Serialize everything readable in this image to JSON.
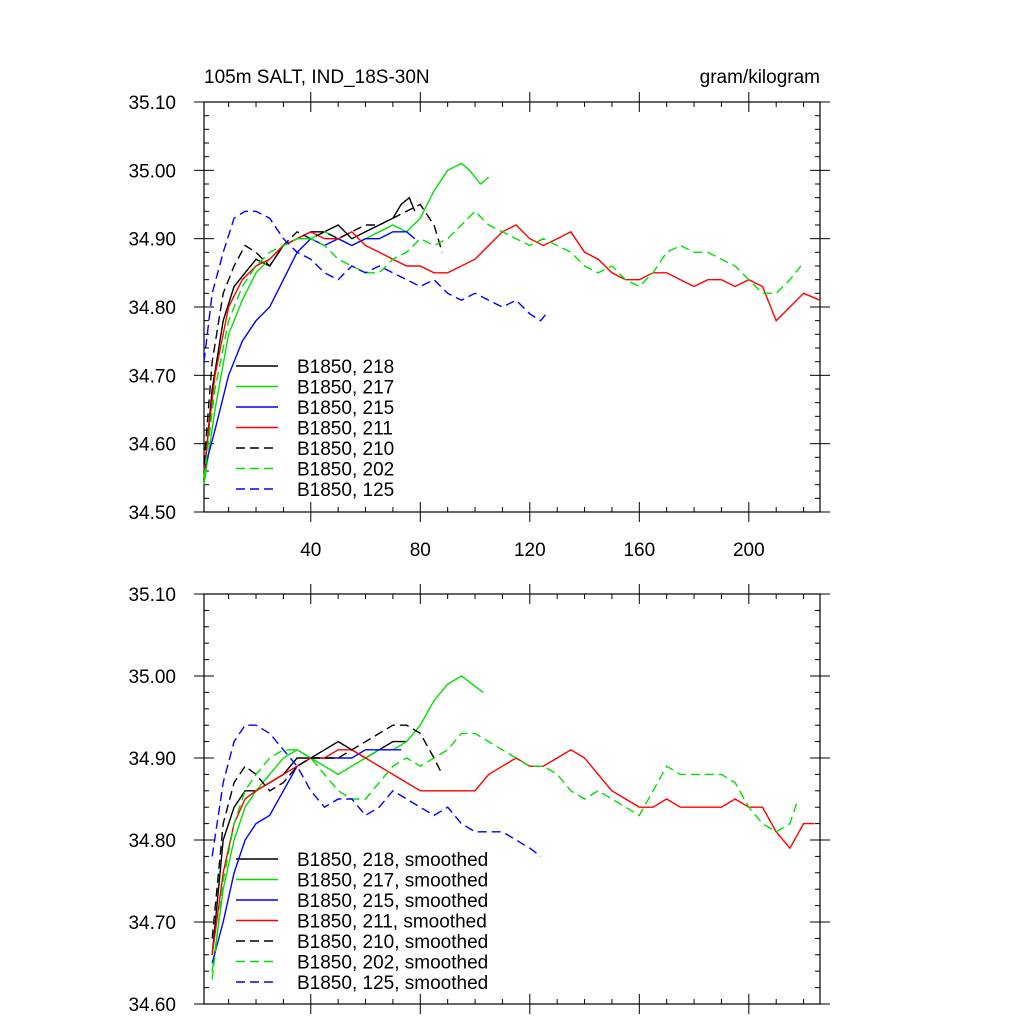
{
  "chart_data": [
    {
      "type": "line",
      "title_left": "105m SALT, IND_18S-30N",
      "title_right": "gram/kilogram",
      "xlim": [
        1,
        226
      ],
      "ylim": [
        34.5,
        35.1
      ],
      "xticks": [
        40,
        80,
        120,
        160,
        200
      ],
      "xtick_labels": [
        "40",
        "80",
        "120",
        "160",
        "200"
      ],
      "yticks": [
        34.5,
        34.6,
        34.7,
        34.8,
        34.9,
        35.0,
        35.1
      ],
      "ytick_labels": [
        "34.50",
        "34.60",
        "34.70",
        "34.80",
        "34.90",
        "35.00",
        "35.10"
      ],
      "series": [
        {
          "name": "B1850, 218",
          "color": "#000000",
          "dash": "solid",
          "x": [
            1,
            4,
            8,
            12,
            16,
            20,
            25,
            30,
            35,
            40,
            45,
            50,
            55,
            60,
            65,
            70,
            73,
            76,
            78
          ],
          "y": [
            34.55,
            34.68,
            34.78,
            34.83,
            34.85,
            34.87,
            34.86,
            34.89,
            34.9,
            34.91,
            34.91,
            34.92,
            34.9,
            34.91,
            34.92,
            34.93,
            34.95,
            34.96,
            34.94
          ]
        },
        {
          "name": "B1850, 217",
          "color": "#00e000",
          "dash": "solid",
          "x": [
            1,
            5,
            10,
            15,
            20,
            25,
            30,
            35,
            40,
            45,
            50,
            55,
            60,
            65,
            70,
            75,
            80,
            85,
            90,
            95,
            98,
            102,
            105
          ],
          "y": [
            34.54,
            34.65,
            34.76,
            34.81,
            34.85,
            34.87,
            34.89,
            34.9,
            34.9,
            34.91,
            34.9,
            34.89,
            34.9,
            34.91,
            34.92,
            34.91,
            34.93,
            34.97,
            35.0,
            35.01,
            35.0,
            34.98,
            34.99
          ]
        },
        {
          "name": "B1850, 215",
          "color": "#0000ff",
          "dash": "solid",
          "x": [
            1,
            5,
            10,
            15,
            20,
            25,
            30,
            35,
            40,
            45,
            50,
            55,
            60,
            65,
            70,
            75,
            78
          ],
          "y": [
            34.56,
            34.62,
            34.7,
            34.75,
            34.78,
            34.8,
            34.84,
            34.88,
            34.9,
            34.89,
            34.9,
            34.89,
            34.9,
            34.9,
            34.91,
            34.91,
            34.9
          ]
        },
        {
          "name": "B1850, 211",
          "color": "#ff0000",
          "dash": "solid",
          "x": [
            1,
            5,
            10,
            15,
            20,
            25,
            30,
            35,
            40,
            45,
            50,
            55,
            60,
            65,
            70,
            75,
            80,
            85,
            90,
            95,
            100,
            105,
            110,
            115,
            120,
            125,
            130,
            135,
            140,
            145,
            150,
            155,
            160,
            165,
            170,
            175,
            180,
            185,
            190,
            195,
            200,
            205,
            210,
            215,
            220,
            226
          ],
          "y": [
            34.56,
            34.7,
            34.8,
            34.84,
            34.86,
            34.87,
            34.89,
            34.9,
            34.91,
            34.9,
            34.9,
            34.91,
            34.89,
            34.88,
            34.87,
            34.86,
            34.86,
            34.85,
            34.85,
            34.86,
            34.87,
            34.89,
            34.91,
            34.92,
            34.9,
            34.89,
            34.9,
            34.91,
            34.88,
            34.87,
            34.85,
            34.84,
            34.84,
            34.85,
            34.85,
            34.84,
            34.83,
            34.84,
            34.84,
            34.83,
            34.84,
            34.83,
            34.78,
            34.8,
            34.82,
            34.81
          ]
        },
        {
          "name": "B1850, 210",
          "color": "#000000",
          "dash": "dashed",
          "x": [
            1,
            4,
            8,
            12,
            16,
            20,
            25,
            30,
            35,
            40,
            45,
            50,
            55,
            60,
            65,
            70,
            75,
            80,
            85,
            88
          ],
          "y": [
            34.57,
            34.72,
            34.82,
            34.86,
            34.89,
            34.88,
            34.86,
            34.89,
            34.91,
            34.9,
            34.91,
            34.9,
            34.91,
            34.92,
            34.92,
            34.93,
            34.94,
            34.95,
            34.92,
            34.88
          ]
        },
        {
          "name": "B1850, 202",
          "color": "#00e000",
          "dash": "dashed",
          "x": [
            1,
            5,
            10,
            15,
            20,
            25,
            30,
            35,
            40,
            45,
            50,
            55,
            60,
            65,
            70,
            75,
            80,
            85,
            90,
            95,
            100,
            105,
            110,
            115,
            120,
            125,
            130,
            135,
            140,
            145,
            150,
            155,
            160,
            165,
            170,
            175,
            180,
            185,
            190,
            195,
            200,
            205,
            210,
            215,
            219
          ],
          "y": [
            34.55,
            34.68,
            34.78,
            34.83,
            34.86,
            34.88,
            34.89,
            34.9,
            34.9,
            34.89,
            34.87,
            34.86,
            34.85,
            34.85,
            34.87,
            34.88,
            34.9,
            34.89,
            34.9,
            34.92,
            34.94,
            34.92,
            34.91,
            34.9,
            34.89,
            34.9,
            34.89,
            34.88,
            34.86,
            34.85,
            34.86,
            34.84,
            34.83,
            34.85,
            34.88,
            34.89,
            34.88,
            34.88,
            34.87,
            34.86,
            34.84,
            34.82,
            34.82,
            34.84,
            34.86
          ]
        },
        {
          "name": "B1850, 125",
          "color": "#0000ff",
          "dash": "dashed",
          "x": [
            1,
            4,
            8,
            12,
            16,
            20,
            25,
            30,
            35,
            40,
            45,
            50,
            55,
            60,
            65,
            70,
            75,
            80,
            85,
            90,
            95,
            100,
            105,
            110,
            115,
            120,
            124,
            126
          ],
          "y": [
            34.72,
            34.82,
            34.88,
            34.93,
            34.94,
            34.94,
            34.93,
            34.9,
            34.88,
            34.87,
            34.85,
            34.84,
            34.86,
            34.85,
            34.86,
            34.85,
            34.84,
            34.83,
            34.84,
            34.82,
            34.81,
            34.82,
            34.81,
            34.8,
            34.81,
            34.79,
            34.78,
            34.79
          ]
        }
      ]
    },
    {
      "type": "line",
      "xlim": [
        1,
        226
      ],
      "ylim": [
        34.6,
        35.1
      ],
      "xticks": [
        40,
        80,
        120,
        160,
        200
      ],
      "yticks": [
        34.6,
        34.7,
        34.8,
        34.9,
        35.0,
        35.1
      ],
      "ytick_labels": [
        "34.60",
        "34.70",
        "34.80",
        "34.90",
        "35.00",
        "35.10"
      ],
      "series": [
        {
          "name": "B1850, 218, smoothed",
          "color": "#000000",
          "dash": "solid",
          "x": [
            4,
            8,
            12,
            16,
            20,
            25,
            30,
            35,
            40,
            45,
            50,
            55,
            60,
            65,
            70,
            75
          ],
          "y": [
            34.66,
            34.8,
            34.84,
            34.86,
            34.86,
            34.87,
            34.88,
            34.9,
            34.9,
            34.91,
            34.92,
            34.91,
            34.9,
            34.91,
            34.92,
            34.92
          ]
        },
        {
          "name": "B1850, 217, smoothed",
          "color": "#00e000",
          "dash": "solid",
          "x": [
            4,
            8,
            12,
            16,
            20,
            25,
            30,
            35,
            40,
            45,
            50,
            55,
            60,
            65,
            70,
            75,
            80,
            85,
            90,
            95,
            99,
            103
          ],
          "y": [
            34.64,
            34.74,
            34.8,
            34.84,
            34.86,
            34.88,
            34.9,
            34.91,
            34.9,
            34.89,
            34.88,
            34.89,
            34.9,
            34.91,
            34.91,
            34.92,
            34.94,
            34.97,
            34.99,
            35.0,
            34.99,
            34.98
          ]
        },
        {
          "name": "B1850, 215, smoothed",
          "color": "#0000ff",
          "dash": "solid",
          "x": [
            4,
            8,
            12,
            16,
            20,
            25,
            30,
            35,
            40,
            45,
            50,
            55,
            60,
            65,
            70,
            73
          ],
          "y": [
            34.65,
            34.7,
            34.76,
            34.8,
            34.82,
            34.83,
            34.86,
            34.89,
            34.9,
            34.9,
            34.9,
            34.9,
            34.91,
            34.91,
            34.91,
            34.91
          ]
        },
        {
          "name": "B1850, 211, smoothed",
          "color": "#ff0000",
          "dash": "solid",
          "x": [
            4,
            8,
            12,
            16,
            20,
            25,
            30,
            35,
            40,
            45,
            50,
            55,
            60,
            65,
            70,
            75,
            80,
            85,
            90,
            95,
            100,
            105,
            110,
            115,
            120,
            125,
            130,
            135,
            140,
            145,
            150,
            155,
            160,
            165,
            170,
            175,
            180,
            185,
            190,
            195,
            200,
            205,
            210,
            215,
            220,
            224
          ],
          "y": [
            34.66,
            34.76,
            34.82,
            34.85,
            34.86,
            34.87,
            34.88,
            34.89,
            34.9,
            34.9,
            34.91,
            34.91,
            34.9,
            34.89,
            34.88,
            34.87,
            34.86,
            34.86,
            34.86,
            34.86,
            34.86,
            34.88,
            34.89,
            34.9,
            34.89,
            34.89,
            34.9,
            34.91,
            34.9,
            34.88,
            34.86,
            34.85,
            34.84,
            34.84,
            34.85,
            34.84,
            34.84,
            34.84,
            34.84,
            34.85,
            34.84,
            34.84,
            34.81,
            34.79,
            34.82,
            34.82
          ]
        },
        {
          "name": "B1850, 210, smoothed",
          "color": "#000000",
          "dash": "dashed",
          "x": [
            4,
            8,
            12,
            16,
            20,
            25,
            30,
            35,
            40,
            45,
            50,
            55,
            60,
            65,
            70,
            75,
            80,
            85,
            88
          ],
          "y": [
            34.68,
            34.82,
            34.87,
            34.89,
            34.88,
            34.86,
            34.87,
            34.89,
            34.9,
            34.9,
            34.9,
            34.91,
            34.92,
            34.93,
            34.94,
            34.94,
            34.93,
            34.9,
            34.88
          ]
        },
        {
          "name": "B1850, 202, smoothed",
          "color": "#00e000",
          "dash": "dashed",
          "x": [
            4,
            8,
            12,
            16,
            20,
            25,
            30,
            35,
            40,
            45,
            50,
            55,
            60,
            65,
            70,
            75,
            80,
            85,
            90,
            95,
            100,
            105,
            110,
            115,
            120,
            125,
            130,
            135,
            140,
            145,
            150,
            155,
            160,
            165,
            170,
            175,
            180,
            185,
            190,
            195,
            200,
            205,
            210,
            215,
            218
          ],
          "y": [
            34.63,
            34.75,
            34.82,
            34.86,
            34.88,
            34.9,
            34.91,
            34.91,
            34.9,
            34.88,
            34.86,
            34.85,
            34.85,
            34.87,
            34.89,
            34.9,
            34.89,
            34.9,
            34.91,
            34.93,
            34.93,
            34.92,
            34.91,
            34.9,
            34.89,
            34.89,
            34.88,
            34.86,
            34.85,
            34.86,
            34.85,
            34.84,
            34.83,
            34.86,
            34.89,
            34.88,
            34.88,
            34.88,
            34.88,
            34.87,
            34.84,
            34.82,
            34.81,
            34.82,
            34.85
          ]
        },
        {
          "name": "B1850, 125, smoothed",
          "color": "#0000ff",
          "dash": "dashed",
          "x": [
            4,
            8,
            12,
            16,
            20,
            25,
            30,
            35,
            40,
            45,
            50,
            55,
            60,
            65,
            70,
            75,
            80,
            85,
            90,
            95,
            100,
            105,
            110,
            115,
            120,
            124
          ],
          "y": [
            34.78,
            34.87,
            34.92,
            34.94,
            34.94,
            34.93,
            34.91,
            34.89,
            34.86,
            34.84,
            34.85,
            34.85,
            34.83,
            34.84,
            34.86,
            34.85,
            34.84,
            34.83,
            34.84,
            34.82,
            34.81,
            34.81,
            34.81,
            34.8,
            34.79,
            34.78
          ]
        }
      ]
    }
  ]
}
